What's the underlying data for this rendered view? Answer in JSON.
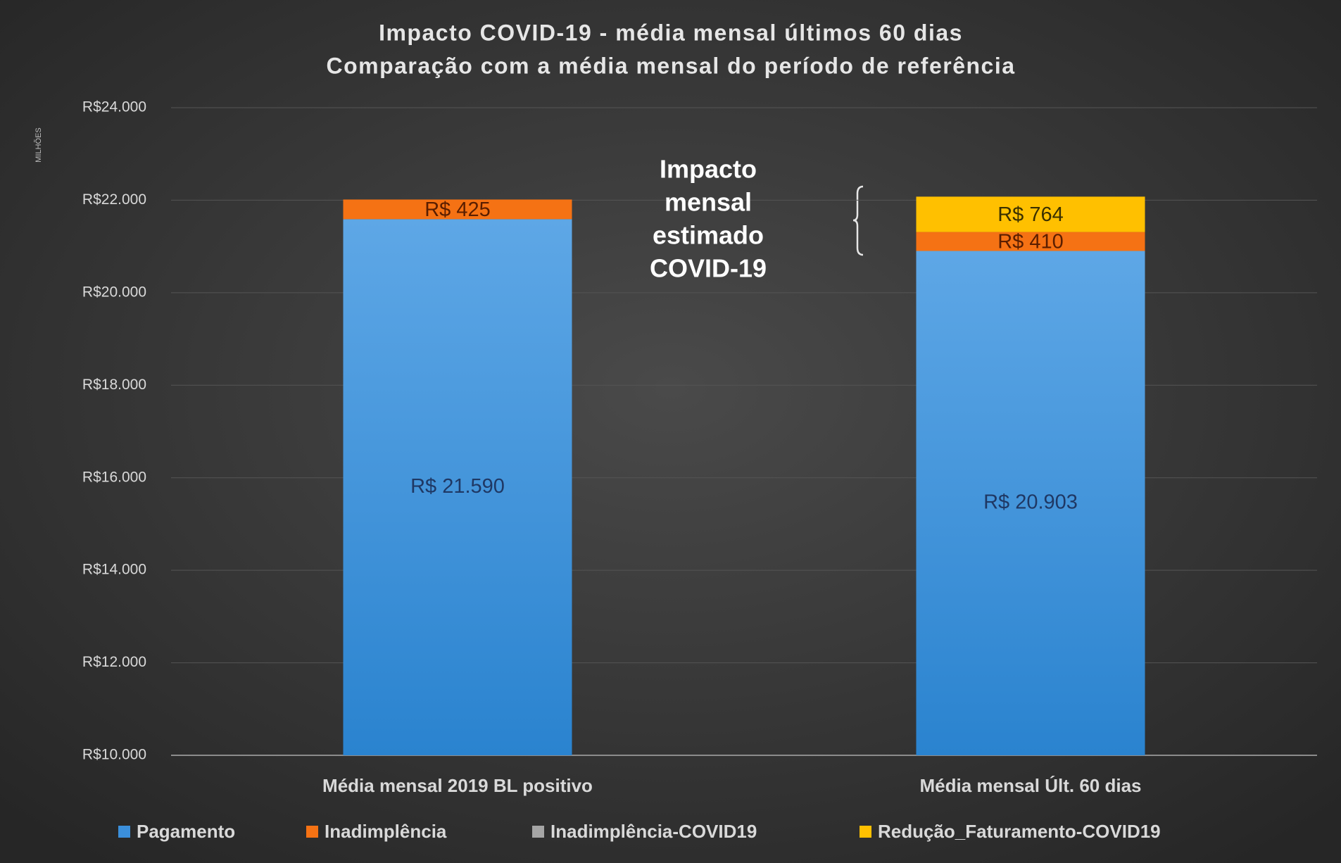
{
  "chart_data": {
    "type": "bar",
    "stacked": true,
    "title": "Impacto COVID-19 - média mensal últimos 60 dias",
    "subtitle": "Comparação com a média mensal do período de referência",
    "y_label": "MILHÕES",
    "annotation": [
      "Impacto",
      "mensal",
      "estimado",
      "COVID-19"
    ],
    "categories": [
      "Média mensal 2019 BL positivo",
      "Média mensal Últ. 60 dias"
    ],
    "series": [
      {
        "name": "Pagamento",
        "color": "#3b8fdb",
        "values": [
          21590,
          20903
        ],
        "value_labels": [
          "R$ 21.590",
          "R$ 20.903"
        ]
      },
      {
        "name": "Inadimplência",
        "color": "#f57214",
        "values": [
          425,
          410
        ],
        "value_labels": [
          "R$ 425",
          "R$ 410"
        ]
      },
      {
        "name": "Inadimplência-COVID19",
        "color": "#a5a5a5",
        "values": [
          null,
          null
        ]
      },
      {
        "name": "Redução_Faturamento-COVID19",
        "color": "#ffc000",
        "values": [
          null,
          764
        ],
        "value_labels": [
          null,
          "R$ 764"
        ]
      }
    ],
    "ylim": [
      10000,
      24000
    ],
    "yticks": [
      {
        "value": 10000,
        "label": "R$10.000"
      },
      {
        "value": 12000,
        "label": "R$12.000"
      },
      {
        "value": 14000,
        "label": "R$14.000"
      },
      {
        "value": 16000,
        "label": "R$16.000"
      },
      {
        "value": 18000,
        "label": "R$18.000"
      },
      {
        "value": 20000,
        "label": "R$20.000"
      },
      {
        "value": 22000,
        "label": "R$22.000"
      },
      {
        "value": 24000,
        "label": "R$24.000"
      }
    ],
    "grid": true,
    "legend": "bottom"
  }
}
